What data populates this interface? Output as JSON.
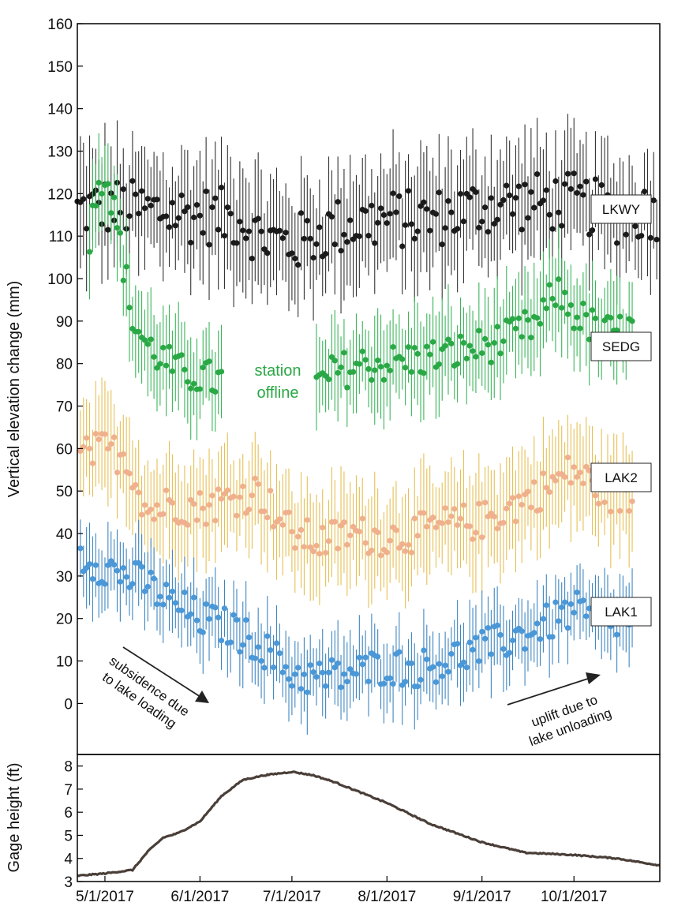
{
  "chart_data": [
    {
      "type": "scatter",
      "title": "",
      "xlabel": "",
      "ylabel": "Vertical elevation change (mm)",
      "ylim": [
        -12,
        160
      ],
      "yticks": [
        0,
        10,
        20,
        30,
        40,
        50,
        60,
        70,
        80,
        90,
        100,
        110,
        120,
        130,
        140,
        150,
        160
      ],
      "xlim": [
        "2017-04-22",
        "2017-10-29"
      ],
      "grid": false,
      "series": [
        {
          "name": "LKWY",
          "color": "#1a1a1a",
          "err_color": "#333333",
          "err": 12,
          "x": [
            "2017-04-22",
            "2017-05-01",
            "2017-05-15",
            "2017-06-01",
            "2017-06-15",
            "2017-06-20",
            "2017-07-01",
            "2017-07-15",
            "2017-08-01",
            "2017-08-15",
            "2017-09-01",
            "2017-09-15",
            "2017-10-01",
            "2017-10-15",
            "2017-10-28"
          ],
          "y": [
            116,
            117,
            116,
            115,
            114,
            110,
            108,
            112,
            114,
            114,
            117,
            118,
            118,
            115,
            116
          ]
        },
        {
          "name": "SEDG",
          "color": "#2aa845",
          "err_color": "#3bb55a",
          "err": 10,
          "x": [
            "2017-04-26",
            "2017-04-29",
            "2017-05-02",
            "2017-05-06",
            "2017-05-10",
            "2017-05-15",
            "2017-05-20",
            "2017-05-25",
            "2017-06-01",
            "2017-06-06",
            "2017-07-10",
            "2017-07-15",
            "2017-07-25",
            "2017-08-01",
            "2017-08-10",
            "2017-08-20",
            "2017-09-01",
            "2017-09-10",
            "2017-09-20",
            "2017-09-25",
            "2017-10-01",
            "2017-10-10",
            "2017-10-20"
          ],
          "y": [
            109,
            125,
            123,
            108,
            90,
            84,
            81,
            78,
            77,
            76,
            75,
            78,
            80,
            80,
            81,
            82,
            84,
            86,
            90,
            97,
            92,
            87,
            88
          ]
        },
        {
          "name": "LAK2",
          "color": "#f0b090",
          "err_color": "#e6bf55",
          "err": 11,
          "x": [
            "2017-04-23",
            "2017-05-01",
            "2017-05-08",
            "2017-05-15",
            "2017-05-22",
            "2017-06-01",
            "2017-06-10",
            "2017-06-20",
            "2017-07-01",
            "2017-07-10",
            "2017-07-20",
            "2017-08-01",
            "2017-08-10",
            "2017-08-20",
            "2017-09-01",
            "2017-09-10",
            "2017-09-20",
            "2017-10-01",
            "2017-10-10",
            "2017-10-20"
          ],
          "y": [
            58,
            60,
            58,
            45,
            47,
            46,
            48,
            50,
            40,
            38,
            40,
            39,
            40,
            42,
            43,
            46,
            50,
            55,
            50,
            48
          ]
        },
        {
          "name": "LAK1",
          "color": "#4a98d8",
          "err_color": "#3f86c0",
          "err": 8,
          "x": [
            "2017-04-23",
            "2017-05-01",
            "2017-05-08",
            "2017-05-15",
            "2017-05-22",
            "2017-06-01",
            "2017-06-10",
            "2017-06-20",
            "2017-07-01",
            "2017-07-10",
            "2017-07-20",
            "2017-08-01",
            "2017-08-10",
            "2017-08-20",
            "2017-09-01",
            "2017-09-10",
            "2017-09-20",
            "2017-10-01",
            "2017-10-10",
            "2017-10-20"
          ],
          "y": [
            35,
            32,
            30,
            28,
            24,
            20,
            18,
            14,
            7,
            6,
            7,
            9,
            8,
            10,
            13,
            15,
            18,
            22,
            19,
            20
          ]
        }
      ],
      "legend": [
        "LKWY",
        "SEDG",
        "LAK2",
        "LAK1"
      ],
      "annotations": [
        {
          "text": "station offline",
          "lines": [
            "station",
            "offline"
          ],
          "color": "#2aa845"
        },
        {
          "text": "subsidence due to lake loading",
          "lines": [
            "subsidence due",
            "to lake loading"
          ],
          "color": "#111111"
        },
        {
          "text": "uplift due to lake unloading",
          "lines": [
            "uplift due to",
            "lake unloading"
          ],
          "color": "#111111"
        }
      ]
    },
    {
      "type": "line",
      "title": "",
      "xlabel": "",
      "ylabel": "Gage height (ft)",
      "ylim": [
        3,
        8.5
      ],
      "yticks": [
        3,
        4,
        5,
        6,
        7,
        8
      ],
      "xlim": [
        "2017-04-22",
        "2017-10-29"
      ],
      "color": "#4a3e38",
      "x": [
        "2017-04-22",
        "2017-05-01",
        "2017-05-10",
        "2017-05-15",
        "2017-05-20",
        "2017-05-25",
        "2017-06-01",
        "2017-06-08",
        "2017-06-15",
        "2017-06-22",
        "2017-07-01",
        "2017-07-08",
        "2017-07-15",
        "2017-08-01",
        "2017-08-15",
        "2017-09-01",
        "2017-09-15",
        "2017-10-01",
        "2017-10-15",
        "2017-10-29"
      ],
      "y": [
        3.25,
        3.35,
        3.5,
        4.3,
        4.9,
        5.1,
        5.6,
        6.7,
        7.4,
        7.6,
        7.75,
        7.6,
        7.3,
        6.4,
        5.5,
        4.7,
        4.25,
        4.15,
        4.0,
        3.7
      ],
      "xtick_labels": [
        "5/1/2017",
        "6/1/2017",
        "7/1/2017",
        "8/1/2017",
        "9/1/2017",
        "10/1/2017"
      ],
      "xtick_dates": [
        "2017-05-01",
        "2017-06-01",
        "2017-07-01",
        "2017-08-01",
        "2017-09-01",
        "2017-10-01"
      ]
    }
  ]
}
